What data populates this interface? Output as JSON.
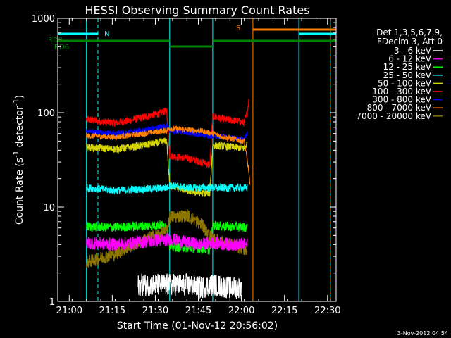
{
  "chart_data": {
    "type": "line",
    "title": "HESSI Observing Summary Count Rates",
    "xlabel": "Start Time (01-Nov-12 20:56:02)",
    "ylabel_parts": [
      "Count Rate (s",
      "-1",
      " detector",
      "-1",
      ")"
    ],
    "ylabel": "Count Rate (s-1 detector-1)",
    "y_scale": "log",
    "ylim": [
      1,
      1000
    ],
    "xlim_min": [
      0,
      97
    ],
    "x_ticks": [
      "21:00",
      "21:15",
      "21:30",
      "21:45",
      "22:00",
      "22:15",
      "22:30"
    ],
    "x_tick_min": [
      4,
      19,
      34,
      49,
      64,
      79,
      94
    ],
    "y_ticks": [
      {
        "label": "1",
        "value": 1
      },
      {
        "label": "10",
        "value": 10
      },
      {
        "label": "100",
        "value": 100
      },
      {
        "label": "1000",
        "value": 1000
      }
    ],
    "legend": {
      "position": "right",
      "header": [
        "Det 1,3,5,6,7,9,",
        "FDecim 3, Att 0"
      ],
      "entries": [
        {
          "label": "3 - 6 keV",
          "color": "#ffffff"
        },
        {
          "label": "6 - 12 keV",
          "color": "#ff00ff"
        },
        {
          "label": "12 - 25 keV",
          "color": "#00ff00"
        },
        {
          "label": "25 - 50 keV",
          "color": "#00ffff"
        },
        {
          "label": "50 - 100 keV",
          "color": "#d4d400"
        },
        {
          "label": "100 - 300 keV",
          "color": "#ff0000"
        },
        {
          "label": "300 - 800 keV",
          "color": "#0000ff"
        },
        {
          "label": "800 - 7000 keV",
          "color": "#ff8000"
        },
        {
          "label": "7000 - 20000 keV",
          "color": "#8b7500"
        }
      ]
    },
    "flag_bars": [
      {
        "label": "N",
        "color": "#00ffff",
        "segments": [
          [
            0,
            14
          ],
          [
            84,
            97
          ]
        ]
      },
      {
        "label": "S",
        "color": "#ff8000",
        "segments": [
          [
            68,
            97
          ]
        ]
      },
      {
        "label": "RD0",
        "color": "#008000",
        "segments": [
          [
            0,
            39
          ],
          [
            54,
            97
          ]
        ]
      },
      {
        "label": "RD6",
        "color": "#008000",
        "segments": [
          [
            39,
            54
          ]
        ]
      }
    ],
    "markers": [
      {
        "color": "#00ffff",
        "style": "solid",
        "x_min": 10
      },
      {
        "color": "#00ffff",
        "style": "dashed",
        "x_min": 14
      },
      {
        "color": "#00ffff",
        "style": "solid",
        "x_min": 39
      },
      {
        "color": "#00ffff",
        "style": "solid",
        "x_min": 54
      },
      {
        "color": "#ff8000",
        "style": "solid",
        "x_min": 68
      },
      {
        "color": "#00ffff",
        "style": "solid",
        "x_min": 84
      },
      {
        "color": "#00ffff",
        "style": "solid",
        "x_min": 95
      },
      {
        "color": "#ff8000",
        "style": "dashed",
        "x_min": 95
      }
    ],
    "series": [
      {
        "name": "100 - 300 keV",
        "color": "#ff0000",
        "noise": 0.04,
        "points": [
          [
            10,
            85
          ],
          [
            15,
            80
          ],
          [
            20,
            78
          ],
          [
            25,
            82
          ],
          [
            30,
            90
          ],
          [
            35,
            97
          ],
          [
            38,
            105
          ],
          [
            39,
            35
          ],
          [
            45,
            33
          ],
          [
            50,
            30
          ],
          [
            53,
            28
          ],
          [
            54,
            92
          ],
          [
            58,
            85
          ],
          [
            62,
            82
          ],
          [
            65,
            78
          ],
          [
            66,
            100
          ],
          [
            66.6,
            135
          ]
        ]
      },
      {
        "name": "300 - 800 keV",
        "color": "#0000ff",
        "noise": 0.03,
        "points": [
          [
            10,
            64
          ],
          [
            20,
            60
          ],
          [
            30,
            65
          ],
          [
            38,
            73
          ],
          [
            39,
            64
          ],
          [
            45,
            62
          ],
          [
            50,
            58
          ],
          [
            54,
            57
          ],
          [
            58,
            55
          ],
          [
            65,
            52
          ],
          [
            66,
            60
          ]
        ]
      },
      {
        "name": "800 - 7000 keV",
        "color": "#ff8000",
        "noise": 0.03,
        "points": [
          [
            10,
            57
          ],
          [
            20,
            55
          ],
          [
            30,
            60
          ],
          [
            38,
            65
          ],
          [
            39,
            68
          ],
          [
            45,
            66
          ],
          [
            50,
            64
          ],
          [
            54,
            60
          ],
          [
            58,
            55
          ],
          [
            62,
            52
          ],
          [
            65,
            50
          ],
          [
            66.5,
            25
          ],
          [
            67,
            16
          ]
        ]
      },
      {
        "name": "50 - 100 keV",
        "color": "#d4d400",
        "noise": 0.04,
        "points": [
          [
            10,
            43
          ],
          [
            20,
            41
          ],
          [
            30,
            45
          ],
          [
            38,
            50
          ],
          [
            39,
            17
          ],
          [
            45,
            15
          ],
          [
            50,
            14
          ],
          [
            53,
            14
          ],
          [
            54,
            45
          ],
          [
            58,
            44
          ],
          [
            65,
            42
          ],
          [
            66,
            47
          ]
        ]
      },
      {
        "name": "25 - 50 keV",
        "color": "#00ffff",
        "noise": 0.04,
        "points": [
          [
            10,
            16
          ],
          [
            20,
            15
          ],
          [
            30,
            15.5
          ],
          [
            38,
            16
          ],
          [
            39,
            17
          ],
          [
            45,
            16
          ],
          [
            50,
            16
          ],
          [
            53,
            16
          ],
          [
            54,
            16
          ],
          [
            60,
            16
          ],
          [
            66,
            16
          ]
        ]
      },
      {
        "name": "12 - 25 keV",
        "color": "#00ff00",
        "noise": 0.05,
        "points": [
          [
            10,
            6.2
          ],
          [
            20,
            6.1
          ],
          [
            30,
            6.3
          ],
          [
            38,
            6.5
          ],
          [
            39,
            3.8
          ],
          [
            45,
            3.7
          ],
          [
            50,
            3.6
          ],
          [
            53,
            3.5
          ],
          [
            54,
            6.4
          ],
          [
            60,
            6.2
          ],
          [
            66,
            6.1
          ]
        ]
      },
      {
        "name": "7000 - 20000 keV",
        "color": "#8b7500",
        "noise": 0.07,
        "points": [
          [
            10,
            2.6
          ],
          [
            20,
            3.2
          ],
          [
            30,
            4.5
          ],
          [
            38,
            5.5
          ],
          [
            39,
            7.8
          ],
          [
            45,
            8.2
          ],
          [
            50,
            6.6
          ],
          [
            54,
            4.5
          ],
          [
            60,
            4
          ],
          [
            66,
            3.5
          ]
        ]
      },
      {
        "name": "6 - 12 keV",
        "color": "#ff00ff",
        "noise": 0.07,
        "points": [
          [
            10,
            4.2
          ],
          [
            20,
            4.0
          ],
          [
            30,
            4.3
          ],
          [
            38,
            4.5
          ],
          [
            39,
            4.6
          ],
          [
            45,
            4.2
          ],
          [
            50,
            4.0
          ],
          [
            54,
            4.2
          ],
          [
            60,
            4.0
          ],
          [
            66,
            4.0
          ]
        ]
      },
      {
        "name": "3 - 6 keV",
        "color": "#ffffff",
        "noise": 0.12,
        "points": [
          [
            28,
            1.5
          ],
          [
            35,
            1.5
          ],
          [
            39,
            1.5
          ],
          [
            45,
            1.5
          ],
          [
            50,
            1.4
          ],
          [
            54,
            1.5
          ],
          [
            60,
            1.4
          ],
          [
            64,
            1.4
          ]
        ]
      }
    ],
    "footer_date": "3-Nov-2012 04:54"
  }
}
